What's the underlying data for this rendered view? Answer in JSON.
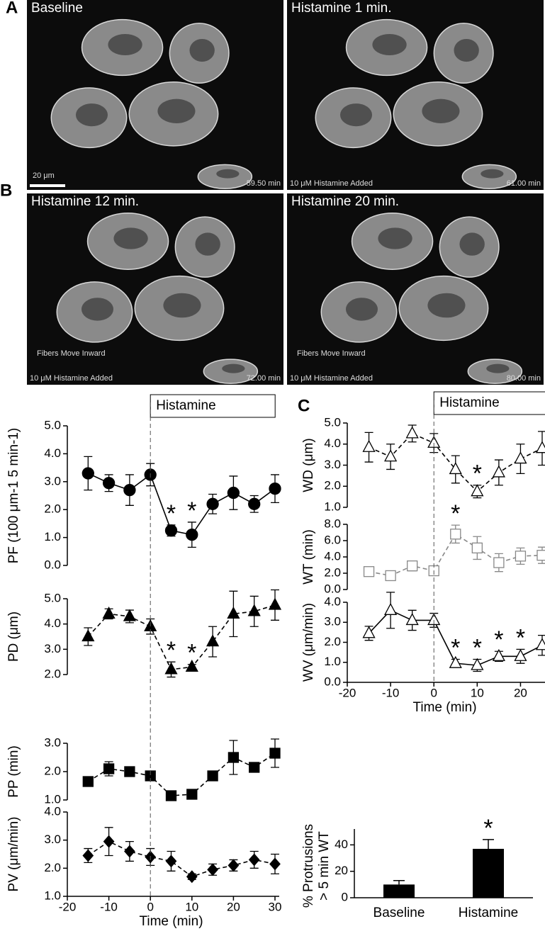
{
  "panel_labels": [
    "A",
    "B",
    "C"
  ],
  "images": [
    {
      "title": "Baseline",
      "scale_bar": "20 μm",
      "time": "59.50 min"
    },
    {
      "title": "Histamine 1 min.",
      "caption": "10 μM Histamine Added",
      "time": "61.00 min"
    },
    {
      "title": "Histamine 12 min.",
      "caption": "10 μM Histamine Added",
      "note": "Fibers Move Inward",
      "time": "72.00 min"
    },
    {
      "title": "Histamine 20 min.",
      "caption": "10 μM Histamine Added",
      "note": "Fibers Move Inward",
      "time": "80.00 min"
    }
  ],
  "chart_data": [
    {
      "type": "line",
      "ylabel": "PF (100 μm-1 5 min-1)",
      "shade_label": "Histamine",
      "x": [
        -15,
        -10,
        -5,
        0,
        5,
        10,
        15,
        20,
        25,
        30
      ],
      "xlim": [
        -20,
        30
      ],
      "ylim": [
        0,
        5
      ],
      "yticks": [
        {
          "value": 0,
          "label": "0.0"
        },
        {
          "value": 1,
          "label": "1.0"
        },
        {
          "value": 2,
          "label": "2.0"
        },
        {
          "value": 3,
          "label": "3.0"
        },
        {
          "value": 4,
          "label": "4.0"
        },
        {
          "value": 5,
          "label": "5.0"
        }
      ],
      "series": [
        {
          "color": "#000000",
          "marker": "circle",
          "filled": true,
          "dashed": false,
          "values": [
            3.3,
            2.95,
            2.7,
            3.25,
            1.25,
            1.1,
            2.2,
            2.6,
            2.2,
            2.75
          ],
          "errors": [
            0.6,
            0.3,
            0.55,
            0.4,
            0.2,
            0.45,
            0.35,
            0.6,
            0.3,
            0.5
          ],
          "sig_labels": [
            null,
            null,
            null,
            null,
            "*",
            "*",
            null,
            null,
            null,
            null
          ]
        }
      ]
    },
    {
      "type": "line",
      "ylabel": "PD (μm)",
      "x": [
        -15,
        -10,
        -5,
        0,
        5,
        10,
        15,
        20,
        25,
        30
      ],
      "xlim": [
        -20,
        30
      ],
      "ylim": [
        2,
        5
      ],
      "yticks": [
        {
          "value": 2,
          "label": "2.0"
        },
        {
          "value": 3,
          "label": "3.0"
        },
        {
          "value": 4,
          "label": "4.0"
        },
        {
          "value": 5,
          "label": "5.0"
        }
      ],
      "series": [
        {
          "color": "#000000",
          "marker": "triangle",
          "filled": true,
          "dashed": true,
          "values": [
            3.5,
            4.4,
            4.3,
            3.9,
            2.2,
            2.3,
            3.3,
            4.4,
            4.5,
            4.75
          ],
          "errors": [
            0.35,
            0.2,
            0.25,
            0.3,
            0.3,
            0.1,
            0.6,
            0.9,
            0.6,
            0.6
          ],
          "sig_labels": [
            null,
            null,
            null,
            null,
            "*",
            "*",
            null,
            null,
            null,
            null
          ]
        }
      ]
    },
    {
      "type": "line",
      "ylabel": "PP (min)",
      "x": [
        -15,
        -10,
        -5,
        0,
        5,
        10,
        15,
        20,
        25,
        30
      ],
      "xlim": [
        -20,
        30
      ],
      "ylim": [
        1,
        3
      ],
      "yticks": [
        {
          "value": 1,
          "label": "1.0"
        },
        {
          "value": 2,
          "label": "2.0"
        },
        {
          "value": 3,
          "label": "3.0"
        }
      ],
      "series": [
        {
          "color": "#000000",
          "marker": "square",
          "filled": true,
          "dashed": true,
          "values": [
            1.65,
            2.1,
            2.0,
            1.85,
            1.15,
            1.2,
            1.85,
            2.5,
            2.15,
            2.65
          ],
          "errors": [
            0.1,
            0.25,
            0.1,
            0.15,
            0.1,
            0.1,
            0.1,
            0.6,
            0.15,
            0.5
          ]
        }
      ]
    },
    {
      "type": "line",
      "ylabel": "PV (μm/min)",
      "xlabel": "Time (min)",
      "x": [
        -15,
        -10,
        -5,
        0,
        5,
        10,
        15,
        20,
        25,
        30
      ],
      "xlim": [
        -20,
        30
      ],
      "xticks": [
        -20,
        -10,
        0,
        10,
        20,
        30
      ],
      "ylim": [
        1,
        4
      ],
      "yticks": [
        {
          "value": 1,
          "label": "1.0"
        },
        {
          "value": 2,
          "label": "2.0"
        },
        {
          "value": 3,
          "label": "3.0"
        },
        {
          "value": 4,
          "label": "4.0"
        }
      ],
      "series": [
        {
          "color": "#000000",
          "marker": "diamond",
          "filled": true,
          "dashed": true,
          "values": [
            2.45,
            2.95,
            2.6,
            2.4,
            2.25,
            1.7,
            1.95,
            2.1,
            2.3,
            2.15
          ],
          "errors": [
            0.25,
            0.5,
            0.35,
            0.3,
            0.35,
            0.1,
            0.2,
            0.2,
            0.3,
            0.35
          ]
        }
      ]
    },
    {
      "type": "line",
      "ylabel": "WD (μm)",
      "shade_label": "Histamine",
      "x": [
        -15,
        -10,
        -5,
        0,
        5,
        10,
        15,
        20,
        25
      ],
      "xlim": [
        -20,
        25
      ],
      "ylim": [
        1,
        5
      ],
      "yticks": [
        {
          "value": 1,
          "label": "1.0"
        },
        {
          "value": 2,
          "label": "2.0"
        },
        {
          "value": 3,
          "label": "3.0"
        },
        {
          "value": 4,
          "label": "4.0"
        },
        {
          "value": 5,
          "label": "5.0"
        }
      ],
      "series": [
        {
          "color": "#000000",
          "marker": "triangle",
          "filled": false,
          "dashed": true,
          "values": [
            3.85,
            3.4,
            4.5,
            4.05,
            2.8,
            1.75,
            2.65,
            3.3,
            3.8
          ],
          "errors": [
            0.7,
            0.6,
            0.4,
            0.45,
            0.65,
            0.3,
            0.6,
            0.7,
            0.8
          ],
          "sig_labels": [
            null,
            null,
            null,
            null,
            null,
            "*",
            null,
            null,
            null
          ]
        }
      ]
    },
    {
      "type": "line",
      "ylabel": "WT (min)",
      "x": [
        -15,
        -10,
        -5,
        0,
        5,
        10,
        15,
        20,
        25
      ],
      "xlim": [
        -20,
        25
      ],
      "ylim": [
        0,
        8
      ],
      "yticks": [
        {
          "value": 0,
          "label": "0.0"
        },
        {
          "value": 2,
          "label": "2.0"
        },
        {
          "value": 4,
          "label": "4.0"
        },
        {
          "value": 6,
          "label": "6.0"
        },
        {
          "value": 8,
          "label": "8.0"
        }
      ],
      "series": [
        {
          "color": "#888888",
          "marker": "square",
          "filled": false,
          "dashed": true,
          "values": [
            2.2,
            1.7,
            2.9,
            2.3,
            6.8,
            5.1,
            3.3,
            4.1,
            4.2
          ],
          "errors": [
            0.4,
            0.3,
            0.6,
            0.3,
            1.1,
            1.4,
            1.1,
            1.0,
            1.0
          ],
          "sig_labels": [
            null,
            null,
            null,
            null,
            "*",
            null,
            null,
            null,
            null
          ]
        }
      ]
    },
    {
      "type": "line",
      "ylabel": "WV (μm/min)",
      "xlabel": "Time (min)",
      "x": [
        -15,
        -10,
        -5,
        0,
        5,
        10,
        15,
        20,
        25
      ],
      "xlim": [
        -20,
        25
      ],
      "xticks": [
        -20,
        -10,
        0,
        10,
        20
      ],
      "ylim": [
        0,
        4
      ],
      "yticks": [
        {
          "value": 0,
          "label": "0.0"
        },
        {
          "value": 1,
          "label": "1.0"
        },
        {
          "value": 2,
          "label": "2.0"
        },
        {
          "value": 3,
          "label": "3.0"
        },
        {
          "value": 4,
          "label": "4.0"
        }
      ],
      "series": [
        {
          "color": "#000000",
          "marker": "triangle",
          "filled": false,
          "dashed": false,
          "values": [
            2.45,
            3.6,
            3.1,
            3.1,
            0.95,
            0.85,
            1.3,
            1.3,
            1.85
          ],
          "errors": [
            0.35,
            0.9,
            0.5,
            0.35,
            0.2,
            0.3,
            0.25,
            0.35,
            0.5
          ],
          "sig_labels": [
            null,
            null,
            null,
            null,
            "*",
            "*",
            "*",
            "*",
            null
          ]
        }
      ]
    },
    {
      "type": "bar",
      "ylabel": [
        "% Protrusions",
        "> 5 min WT"
      ],
      "categories": [
        "Baseline",
        "Histamine"
      ],
      "values": [
        10,
        37
      ],
      "errors": [
        3,
        7
      ],
      "sig_labels": [
        null,
        "*"
      ],
      "color": "#000000",
      "ylim": [
        0,
        52
      ],
      "yticks": [
        0,
        20,
        40
      ]
    }
  ]
}
